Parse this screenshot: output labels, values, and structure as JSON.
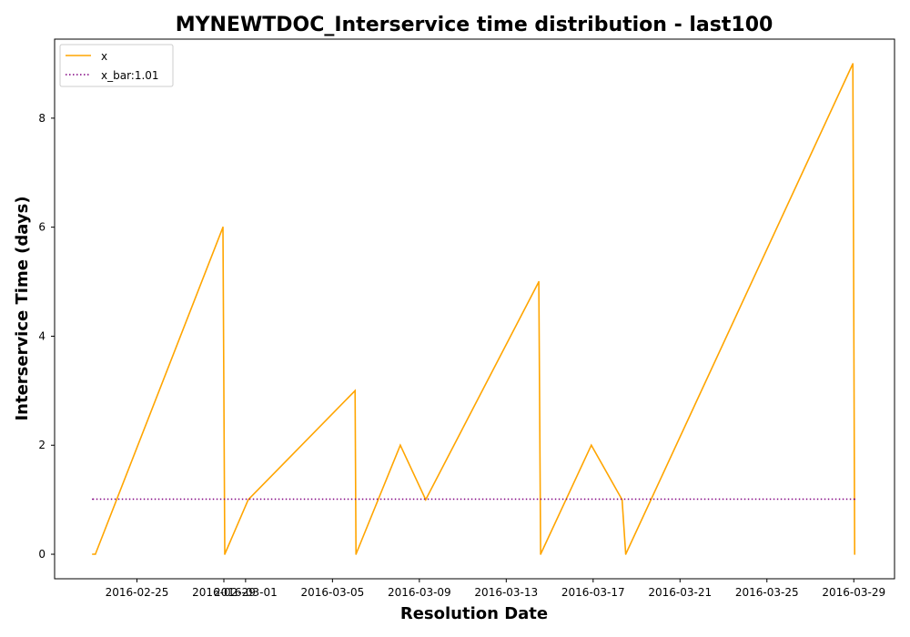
{
  "chart_data": {
    "type": "line",
    "title": "MYNEWTDOC_Interservice time distribution - last100",
    "xlabel": "Resolution Date",
    "ylabel": "Interservice Time (days)",
    "ylim": [
      -0.45,
      9.45
    ],
    "xlim": [
      "2016-02-21T05:00",
      "2016-03-30T21:00"
    ],
    "grid": false,
    "legend_position": "top-left",
    "x_ticks": [
      "2016-02-25",
      "2016-02-29",
      "2016-03-01",
      "2016-03-05",
      "2016-03-09",
      "2016-03-13",
      "2016-03-17",
      "2016-03-21",
      "2016-03-25",
      "2016-03-29"
    ],
    "x_tick_labels": [
      "2016-02-25",
      "2016-02-29",
      "2016-03-01",
      "2016-03-05",
      "2016-03-09",
      "2016-03-13",
      "2016-03-17",
      "2016-03-21",
      "2016-03-25",
      "2016-03-29"
    ],
    "y_ticks": [
      0,
      2,
      4,
      6,
      8
    ],
    "y_tick_labels": [
      "0",
      "2",
      "4",
      "6",
      "8"
    ],
    "series": [
      {
        "name": "x",
        "color": "#ffa500",
        "style": "solid",
        "x": [
          "2016-02-22T23:00",
          "2016-02-23T02:00",
          "2016-02-28T23:00",
          "2016-02-29T01:00",
          "2016-03-01T03:00",
          "2016-03-06T01:00",
          "2016-03-06T02:00",
          "2016-03-08T03:00",
          "2016-03-09T07:00",
          "2016-03-14T12:00",
          "2016-03-14T14:00",
          "2016-03-16T22:00",
          "2016-03-18T08:00",
          "2016-03-18T12:00",
          "2016-03-28T23:00",
          "2016-03-29T01:00"
        ],
        "y": [
          0,
          0,
          6,
          0,
          1,
          3,
          0,
          2,
          1,
          5,
          0,
          2,
          1,
          0,
          9,
          0
        ]
      },
      {
        "name": "x_bar:1.01",
        "color": "#800080",
        "style": "dotted",
        "x": [
          "2016-02-22T23:00",
          "2016-03-29T01:00"
        ],
        "y": [
          1.01,
          1.01
        ]
      }
    ]
  }
}
